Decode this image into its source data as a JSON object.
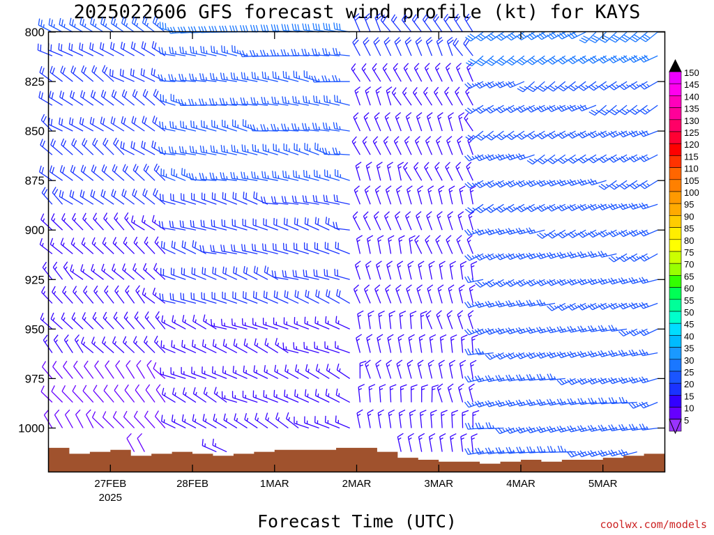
{
  "title": "2025022606 GFS forecast wind profile (kt) for KAYS",
  "credit": "coolwx.com/models",
  "chart_data": {
    "type": "wind_barb_time_height",
    "xlabel": "Forecast Time (UTC)",
    "ylabel": "",
    "y_axis": {
      "ticks": [
        800,
        825,
        850,
        875,
        900,
        925,
        950,
        975,
        1000
      ],
      "range_hpa": [
        800,
        1022
      ],
      "inverted": true
    },
    "x_axis": {
      "ticks": [
        {
          "label": "27FEB",
          "sublabel": "2025",
          "hour": 18
        },
        {
          "label": "28FEB",
          "sublabel": "",
          "hour": 42
        },
        {
          "label": "1MAR",
          "sublabel": "",
          "hour": 66
        },
        {
          "label": "2MAR",
          "sublabel": "",
          "hour": 90
        },
        {
          "label": "3MAR",
          "sublabel": "",
          "hour": 114
        },
        {
          "label": "4MAR",
          "sublabel": "",
          "hour": 138
        },
        {
          "label": "5MAR",
          "sublabel": "",
          "hour": 162
        }
      ],
      "range_hours": [
        0,
        180
      ],
      "step_hours": 3
    },
    "barb_levels_hpa": [
      800,
      812,
      825,
      837,
      850,
      862,
      875,
      887,
      900,
      912,
      925,
      937,
      950,
      962,
      975,
      987,
      1000,
      1012
    ],
    "terrain_surface_hpa": [
      {
        "hour": 0,
        "p": 1010
      },
      {
        "hour": 6,
        "p": 1013
      },
      {
        "hour": 12,
        "p": 1012
      },
      {
        "hour": 18,
        "p": 1011
      },
      {
        "hour": 24,
        "p": 1014
      },
      {
        "hour": 30,
        "p": 1013
      },
      {
        "hour": 36,
        "p": 1012
      },
      {
        "hour": 42,
        "p": 1013
      },
      {
        "hour": 48,
        "p": 1014
      },
      {
        "hour": 54,
        "p": 1013
      },
      {
        "hour": 60,
        "p": 1012
      },
      {
        "hour": 66,
        "p": 1011
      },
      {
        "hour": 72,
        "p": 1011
      },
      {
        "hour": 78,
        "p": 1011
      },
      {
        "hour": 84,
        "p": 1010
      },
      {
        "hour": 90,
        "p": 1010
      },
      {
        "hour": 96,
        "p": 1012
      },
      {
        "hour": 102,
        "p": 1015
      },
      {
        "hour": 108,
        "p": 1016
      },
      {
        "hour": 114,
        "p": 1017
      },
      {
        "hour": 120,
        "p": 1017
      },
      {
        "hour": 126,
        "p": 1018
      },
      {
        "hour": 132,
        "p": 1017
      },
      {
        "hour": 138,
        "p": 1016
      },
      {
        "hour": 144,
        "p": 1017
      },
      {
        "hour": 150,
        "p": 1016
      },
      {
        "hour": 156,
        "p": 1016
      },
      {
        "hour": 162,
        "p": 1015
      },
      {
        "hour": 168,
        "p": 1014
      },
      {
        "hour": 174,
        "p": 1013
      },
      {
        "hour": 180,
        "p": 1011
      }
    ],
    "wind_regimes": [
      {
        "hours": [
          0,
          36
        ],
        "dir_deg": 300,
        "speed_kt_top": 25,
        "speed_kt_bottom": 12
      },
      {
        "hours": [
          36,
          90
        ],
        "dir_deg": 275,
        "speed_kt_top": 30,
        "speed_kt_bottom": 15
      },
      {
        "hours": [
          90,
          126
        ],
        "dir_deg": 330,
        "speed_kt_top": 20,
        "speed_kt_bottom": 15
      },
      {
        "hours": [
          126,
          180
        ],
        "dir_deg": 235,
        "speed_kt_top": 30,
        "speed_kt_bottom": 25
      }
    ],
    "colorbar": {
      "units": "kt",
      "labels": [
        5,
        10,
        15,
        20,
        25,
        30,
        35,
        40,
        45,
        50,
        55,
        60,
        65,
        70,
        75,
        80,
        85,
        90,
        95,
        100,
        105,
        110,
        115,
        120,
        125,
        130,
        135,
        140,
        145,
        150
      ],
      "colors": [
        "#9933ff",
        "#6600ff",
        "#3300ff",
        "#1a33ff",
        "#1a55ff",
        "#1a77ff",
        "#1a99ff",
        "#00bbff",
        "#00ddff",
        "#00ffcc",
        "#00ff99",
        "#00ff55",
        "#33ff00",
        "#99ff00",
        "#ccff00",
        "#ffff00",
        "#ffee00",
        "#ffcc00",
        "#ffaa00",
        "#ff9900",
        "#ff8000",
        "#ff6600",
        "#ff3300",
        "#ff0000",
        "#ff0033",
        "#ff0066",
        "#ff0099",
        "#ff00bb",
        "#ff00ee",
        "#ee00ff"
      ],
      "over_color": "#000000",
      "under_color": "#9933ff"
    },
    "colors": {
      "terrain": "#a0522d",
      "frame": "#000000"
    },
    "grid": false,
    "legend": "right-colorbar"
  }
}
